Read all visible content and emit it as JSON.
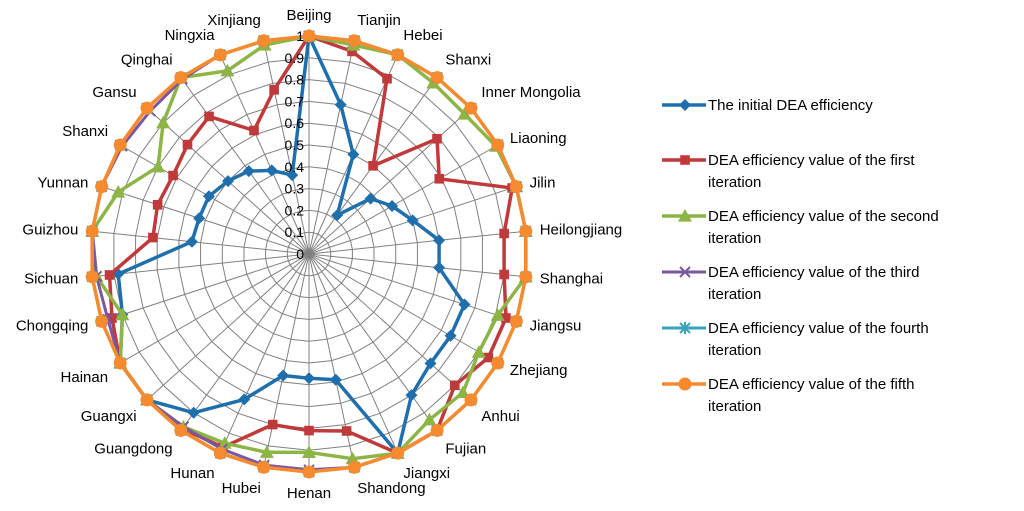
{
  "chart_data": {
    "type": "radar",
    "title": "",
    "categories": [
      "Beijing",
      "Tianjin",
      "Hebei",
      "Shanxi",
      "Inner Mongolia",
      "Liaoning",
      "Jilin",
      "Heilongjiang",
      "Shanghai",
      "Jiangsu",
      "Zhejiang",
      "Anhui",
      "Fujian",
      "Jiangxi",
      "Shandong",
      "Henan",
      "Hubei",
      "Hunan",
      "Guangdong",
      "Guangxi",
      "Hainan",
      "Chongqing",
      "Sichuan",
      "Guizhou",
      "Yunnan",
      "Shanxi",
      "Gansu",
      "Qinghai",
      "Ningxia",
      "Xinjiang"
    ],
    "radial_ticks": [
      "0",
      "0.1",
      "0.2",
      "0.3",
      "0.4",
      "0.5",
      "0.6",
      "0.7",
      "0.8",
      "0.9",
      "1"
    ],
    "rmax": 1,
    "grid": true,
    "legend_position": "right",
    "series": [
      {
        "name": "The initial  DEA efficiency",
        "color": "#1f6fad",
        "marker": "diamond",
        "values": [
          1,
          0.7,
          0.5,
          0.22,
          0.38,
          0.44,
          0.5,
          0.6,
          0.6,
          0.75,
          0.75,
          0.75,
          0.8,
          1,
          0.59,
          0.57,
          0.57,
          0.73,
          0.9,
          1,
          1,
          0.9,
          0.88,
          0.54,
          0.53,
          0.53,
          0.5,
          0.47,
          0.42,
          0.37
        ]
      },
      {
        "name": "DEA efficiency value of the first iteration",
        "color": "#c0393b",
        "marker": "square",
        "values": [
          1,
          0.95,
          0.88,
          0.5,
          0.79,
          0.69,
          0.98,
          0.9,
          0.9,
          0.95,
          0.95,
          0.9,
          1,
          1,
          0.83,
          0.81,
          0.8,
          0.97,
          0.99,
          1,
          1,
          0.95,
          0.92,
          0.72,
          0.73,
          0.72,
          0.75,
          0.78,
          0.62,
          0.77
        ]
      },
      {
        "name": "DEA efficiency value of the second iteration",
        "color": "#8db545",
        "marker": "triangle",
        "values": [
          1,
          0.98,
          1,
          0.97,
          0.96,
          0.99,
          1,
          1,
          1,
          0.91,
          0.9,
          0.95,
          0.94,
          1,
          0.96,
          0.91,
          0.93,
          0.95,
          0.98,
          1,
          1,
          0.9,
          0.98,
          1,
          0.92,
          0.8,
          0.9,
          1,
          0.92,
          0.98
        ]
      },
      {
        "name": "DEA efficiency value of the third iteration",
        "color": "#7a57a0",
        "marker": "x",
        "values": [
          1,
          1,
          1,
          1,
          1,
          1,
          1,
          1,
          1,
          1,
          1,
          1,
          1,
          1,
          1,
          0.99,
          0.99,
          0.98,
          0.98,
          1,
          1,
          0.97,
          0.98,
          1,
          1,
          0.99,
          0.98,
          0.99,
          1,
          1
        ]
      },
      {
        "name": "DEA efficiency value of the fourth iteration",
        "color": "#35a3b8",
        "marker": "star",
        "values": [
          1,
          1,
          1,
          1,
          1,
          1,
          1,
          1,
          1,
          1,
          1,
          1,
          1,
          1,
          1,
          1,
          1,
          1,
          1,
          1,
          1,
          1,
          1,
          1,
          1,
          1,
          1,
          1,
          1,
          1
        ]
      },
      {
        "name": "DEA efficiency value of the fifth iteration",
        "color": "#f58a2e",
        "marker": "circle",
        "values": [
          1,
          1,
          1,
          1,
          1,
          1,
          1,
          1,
          1,
          1,
          1,
          1,
          1,
          1,
          1,
          1,
          1,
          1,
          1,
          1,
          1,
          1,
          1,
          1,
          1,
          1,
          1,
          1,
          1,
          1
        ]
      }
    ]
  }
}
